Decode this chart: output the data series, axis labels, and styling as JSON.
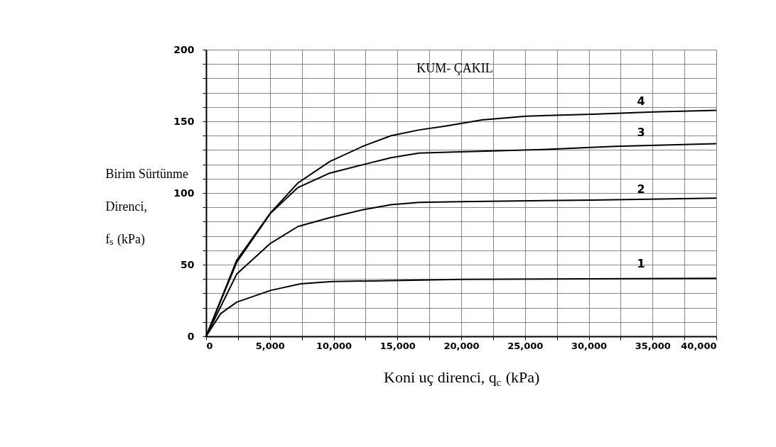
{
  "chart_data": {
    "type": "line",
    "xlabel": "Koni uç direnci, q$_{c}$ (kPa)",
    "ylabel": "Birim Sürtünme Direnci, fₛ (kPa)",
    "series": [
      {
        "name": null,
        "color": "#000000",
        "x": [
          0,
          1150,
          2400,
          5040,
          7400,
          9900,
          14500,
          19900,
          30000,
          40000
        ],
        "values": [
          0,
          15.9,
          23.8,
          32,
          36.6,
          38.2,
          38.9,
          39.7,
          40.1,
          40.5
        ]
      },
      {
        "name": null,
        "color": "#000000",
        "x": [
          0,
          2400,
          5040,
          7200,
          9700,
          12400,
          14500,
          16700,
          19900,
          30300,
          40000
        ],
        "values": [
          0,
          43.4,
          64.8,
          76.6,
          82.8,
          88.5,
          91.8,
          93.4,
          93.9,
          95.1,
          96.4
        ]
      },
      {
        "name": null,
        "color": "#000000",
        "x": [
          0,
          2400,
          5040,
          7200,
          9700,
          12400,
          14500,
          16700,
          19900,
          26400,
          32100,
          40000
        ],
        "values": [
          0,
          51.6,
          85.7,
          103.8,
          113.9,
          120,
          124.6,
          127.9,
          128.7,
          130.3,
          132.5,
          134.4
        ]
      },
      {
        "name": null,
        "color": "#000000",
        "x": [
          0,
          2400,
          5040,
          7200,
          9700,
          12400,
          14500,
          16700,
          18750,
          21630,
          25100,
          30300,
          35100,
          40000
        ],
        "values": [
          0,
          53,
          86,
          107,
          122,
          133,
          140,
          144,
          146.7,
          151,
          153.6,
          155,
          156.6,
          157.7
        ]
      }
    ],
    "annotations": [
      "1",
      "2",
      "3",
      "4",
      "KUM- ÇAKIL"
    ],
    "xlim": [
      0,
      40000
    ],
    "xticks": [
      {
        "value": 0,
        "label": "0"
      },
      {
        "value": 2500,
        "label": null
      },
      {
        "value": 5000,
        "label": "5,000"
      },
      {
        "value": 7500,
        "label": null
      },
      {
        "value": 10000,
        "label": "10,000"
      },
      {
        "value": 12500,
        "label": null
      },
      {
        "value": 15000,
        "label": "15,000"
      },
      {
        "value": 17500,
        "label": null
      },
      {
        "value": 20000,
        "label": "20,000"
      },
      {
        "value": 22500,
        "label": null
      },
      {
        "value": 25000,
        "label": "25,000"
      },
      {
        "value": 27500,
        "label": null
      },
      {
        "value": 30000,
        "label": "30,000"
      },
      {
        "value": 32500,
        "label": null
      },
      {
        "value": 35000,
        "label": "35,000"
      },
      {
        "value": 37500,
        "label": null
      },
      {
        "value": 40000,
        "label": "40,000"
      }
    ],
    "ylim": [
      0,
      200
    ],
    "yticks": [
      0,
      {
        "value": 10,
        "label": null
      },
      {
        "value": 20,
        "label": null
      },
      {
        "value": 30,
        "label": null
      },
      {
        "value": 40,
        "label": null
      },
      50,
      {
        "value": 60,
        "label": null
      },
      {
        "value": 70,
        "label": null
      },
      {
        "value": 80,
        "label": null
      },
      {
        "value": 90,
        "label": null
      },
      100,
      {
        "value": 110,
        "label": null
      },
      {
        "value": 120,
        "label": null
      },
      {
        "value": 130,
        "label": null
      },
      {
        "value": 140,
        "label": null
      },
      150,
      {
        "value": 160,
        "label": null
      },
      {
        "value": 170,
        "label": null
      },
      {
        "value": 180,
        "label": null
      },
      {
        "value": 190,
        "label": null
      },
      200
    ],
    "grid": true,
    "legend": false,
    "marker": "none",
    "line_style": "solid"
  }
}
